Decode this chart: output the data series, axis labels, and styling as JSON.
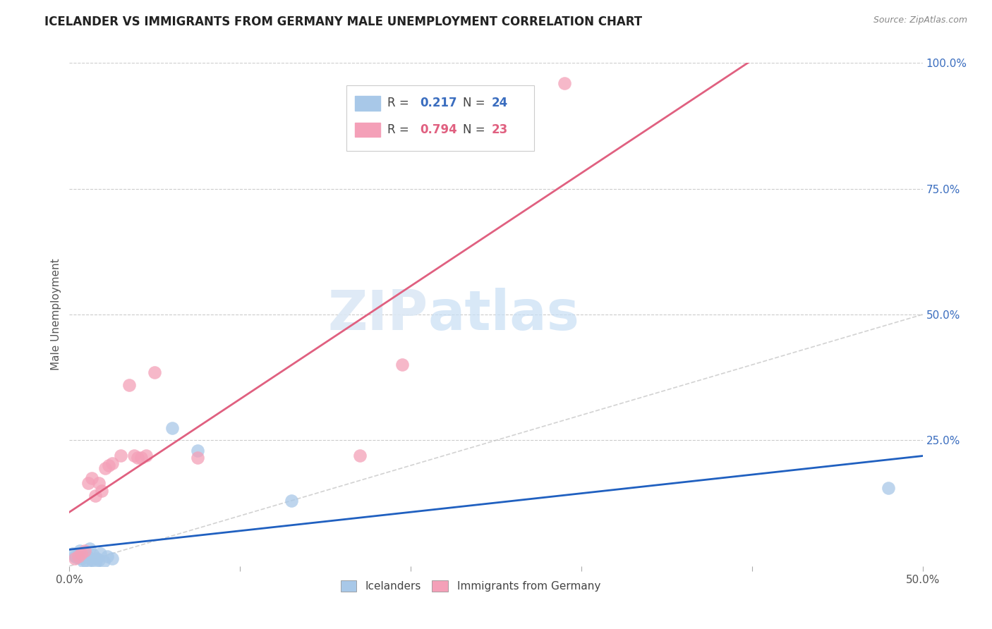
{
  "title": "ICELANDER VS IMMIGRANTS FROM GERMANY MALE UNEMPLOYMENT CORRELATION CHART",
  "source": "Source: ZipAtlas.com",
  "ylabel_label": "Male Unemployment",
  "xlim": [
    0.0,
    0.5
  ],
  "ylim": [
    0.0,
    1.0
  ],
  "xtick_labels": [
    "0.0%",
    "",
    "",
    "",
    "",
    "50.0%"
  ],
  "xtick_vals": [
    0.0,
    0.1,
    0.2,
    0.3,
    0.4,
    0.5
  ],
  "ytick_labels": [
    "100.0%",
    "75.0%",
    "50.0%",
    "25.0%"
  ],
  "ytick_vals": [
    1.0,
    0.75,
    0.5,
    0.25
  ],
  "icelander_color": "#a8c8e8",
  "germany_color": "#f4a0b8",
  "icelander_line_color": "#2060c0",
  "germany_line_color": "#e06080",
  "diagonal_color": "#c0c0c0",
  "R_icelander": 0.217,
  "N_icelander": 24,
  "R_germany": 0.794,
  "N_germany": 23,
  "watermark_zip": "ZIP",
  "watermark_atlas": "atlas",
  "icelander_x": [
    0.002,
    0.003,
    0.004,
    0.005,
    0.006,
    0.007,
    0.008,
    0.009,
    0.01,
    0.011,
    0.012,
    0.013,
    0.014,
    0.015,
    0.016,
    0.017,
    0.018,
    0.02,
    0.022,
    0.025,
    0.06,
    0.075,
    0.13,
    0.48
  ],
  "icelander_y": [
    0.025,
    0.02,
    0.018,
    0.022,
    0.03,
    0.015,
    0.01,
    0.025,
    0.008,
    0.018,
    0.035,
    0.012,
    0.022,
    0.008,
    0.015,
    0.012,
    0.025,
    0.01,
    0.02,
    0.015,
    0.275,
    0.23,
    0.13,
    0.155
  ],
  "germany_x": [
    0.003,
    0.005,
    0.007,
    0.009,
    0.011,
    0.013,
    0.015,
    0.017,
    0.019,
    0.021,
    0.023,
    0.025,
    0.03,
    0.035,
    0.038,
    0.04,
    0.042,
    0.045,
    0.05,
    0.075,
    0.17,
    0.195,
    0.29
  ],
  "germany_y": [
    0.015,
    0.02,
    0.025,
    0.03,
    0.165,
    0.175,
    0.14,
    0.165,
    0.15,
    0.195,
    0.2,
    0.205,
    0.22,
    0.36,
    0.22,
    0.215,
    0.215,
    0.22,
    0.385,
    0.215,
    0.22,
    0.4,
    0.96
  ]
}
